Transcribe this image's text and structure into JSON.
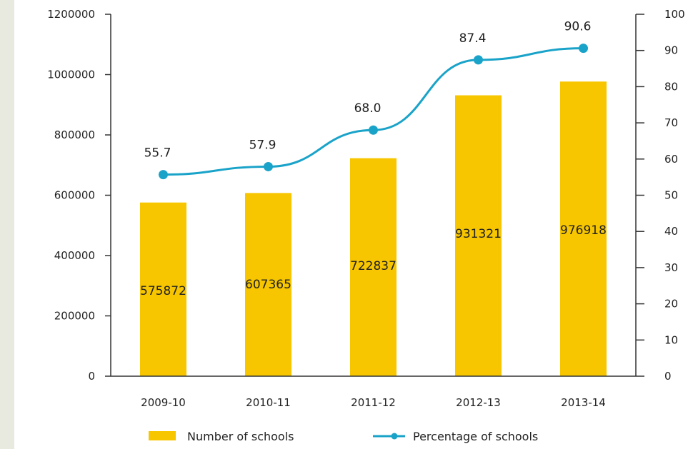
{
  "chart_data": {
    "type": "bar+line",
    "categories": [
      "2009-10",
      "2010-11",
      "2011-12",
      "2012-13",
      "2013-14"
    ],
    "series": [
      {
        "name": "Number of schools",
        "type": "bar",
        "axis": "left",
        "values": [
          575872,
          607365,
          722837,
          931321,
          976918
        ],
        "value_labels": [
          "575872",
          "607365",
          "722837",
          "931321",
          "976918"
        ],
        "color": "#f7c600"
      },
      {
        "name": "Percentage of schools",
        "type": "line",
        "axis": "right",
        "values": [
          55.7,
          57.9,
          68.0,
          87.4,
          90.6
        ],
        "value_labels": [
          "55.7",
          "57.9",
          "68.0",
          "87.4",
          "90.6"
        ],
        "color": "#1aa3c9"
      }
    ],
    "y_left": {
      "range": [
        0,
        1200000
      ],
      "ticks": [
        0,
        200000,
        400000,
        600000,
        800000,
        1000000,
        1200000
      ],
      "tick_labels": [
        "0",
        "200000",
        "400000",
        "600000",
        "800000",
        "1000000",
        "1200000"
      ]
    },
    "y_right": {
      "range": [
        0,
        100
      ],
      "ticks": [
        0,
        10,
        20,
        30,
        40,
        50,
        60,
        70,
        80,
        90,
        100
      ],
      "tick_labels": [
        "0",
        "10",
        "20",
        "30",
        "40",
        "50",
        "60",
        "70",
        "80",
        "90",
        "100"
      ]
    },
    "grid": false,
    "legend": {
      "position": "bottom",
      "items": [
        "Number of schools",
        "Percentage of schools"
      ]
    },
    "title": "",
    "xlabel": "",
    "ylabel": ""
  }
}
